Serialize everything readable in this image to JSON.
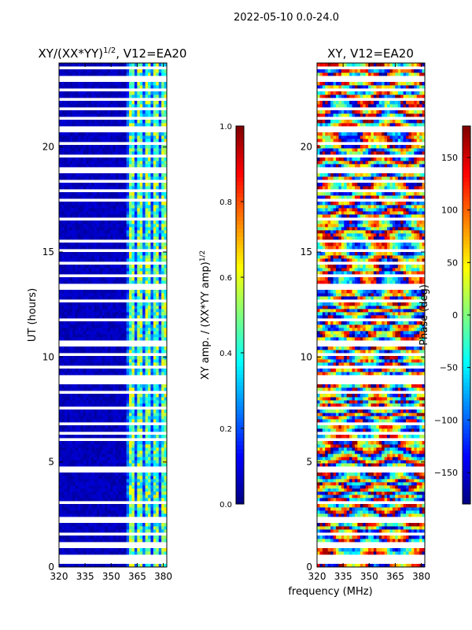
{
  "suptitle": "2022-05-10 0.0-24.0",
  "shared_xlabel": "frequency (MHz)",
  "colors": {
    "jet": [
      "#00007f",
      "#0000ff",
      "#007fff",
      "#00ffff",
      "#7fff7f",
      "#ffff00",
      "#ff7f00",
      "#ff0000",
      "#7f0000"
    ],
    "gap": "#ffffff"
  },
  "chart_data": [
    {
      "type": "heatmap",
      "title": "XY/(XX*YY)",
      "title_sup": "1/2",
      "title_suffix": ", V12=EA20",
      "xlabel": "",
      "ylabel": "UT (hours)",
      "xlim": [
        320,
        382
      ],
      "ylim": [
        0,
        24
      ],
      "xticks": [
        320,
        335,
        350,
        365,
        380
      ],
      "yticks": [
        0,
        5,
        10,
        15,
        20
      ],
      "colorbar": {
        "label": "XY amp. / (XX*YY amp)",
        "label_sup": "1/2",
        "range": [
          0.0,
          1.0
        ],
        "ticks": [
          "0.0",
          "0.2",
          "0.4",
          "0.6",
          "0.8",
          "1.0"
        ],
        "tick_values": [
          0.0,
          0.2,
          0.4,
          0.6,
          0.8,
          1.0
        ]
      },
      "description_values": {
        "band_low_mhz": [
          320,
          359
        ],
        "band_low_level": 0.03,
        "band_high_mhz": [
          359,
          382
        ],
        "band_high_level_range": [
          0.3,
          0.65
        ]
      }
    },
    {
      "type": "heatmap",
      "title": "XY, V12=EA20",
      "xlabel": "frequency (MHz)",
      "ylabel": "",
      "xlim": [
        320,
        382
      ],
      "ylim": [
        0,
        24
      ],
      "xticks": [
        320,
        335,
        350,
        365,
        380
      ],
      "yticks": [
        0,
        5,
        10,
        15,
        20
      ],
      "colorbar": {
        "label": "Phase (deg)",
        "range": [
          -180,
          180
        ],
        "ticks": [
          "−150",
          "−100",
          "−50",
          "0",
          "50",
          "100",
          "150"
        ],
        "tick_values": [
          -150,
          -100,
          -50,
          0,
          50,
          100,
          150
        ]
      },
      "description_values": {
        "phase_range_deg": [
          -180,
          180
        ]
      }
    }
  ]
}
